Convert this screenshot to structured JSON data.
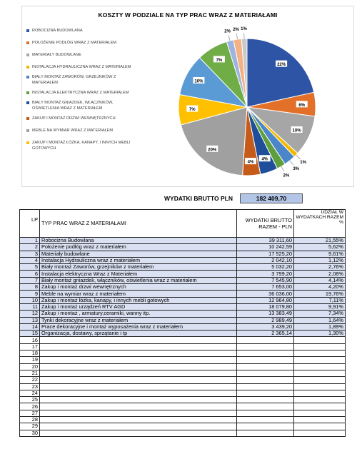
{
  "chart_data": {
    "type": "pie",
    "title": "KOSZTY W PODZIALE NA TYP PRAC WRAZ Z MATERIAŁAMI",
    "slices": [
      {
        "label": "Robocizna Budowlana",
        "value": 21.55,
        "display": "22%",
        "color": "#2e54a6"
      },
      {
        "label": "Położenie podłóg wraz z materiałem",
        "value": 5.62,
        "display": "6%",
        "color": "#e27028"
      },
      {
        "label": "Materiały budowlane",
        "value": 9.61,
        "display": "10%",
        "color": "#a6a6a6"
      },
      {
        "label": "Instalacja hydrauliczna wraz z materiałem",
        "value": 1.12,
        "display": "1%",
        "color": "#f2b800"
      },
      {
        "label": "Biały montaż zaworów, grzejników z materiałem",
        "value": 2.76,
        "display": "3%",
        "color": "#4a86c8"
      },
      {
        "label": "Instalacja elektryczna wraz z materiałem",
        "value": 2.08,
        "display": "2%",
        "color": "#5e9e3c"
      },
      {
        "label": "Biały montaż gniazdek, włączników, oświetlenia wraz z materiałem",
        "value": 4.14,
        "display": "4%",
        "color": "#1f4e9a"
      },
      {
        "label": "Zakup i montaż drzwi wewnętrznych",
        "value": 4.2,
        "display": "4%",
        "color": "#c65a18"
      },
      {
        "label": "Meble na wymiar wraz z materiałem",
        "value": 19.76,
        "display": "20%",
        "color": "#a0a0a0"
      },
      {
        "label": "Zakup i montaż łóżka, kanapy, i innych mebli gotowych",
        "value": 7.11,
        "display": "7%",
        "color": "#ffc000"
      },
      {
        "label": "Zakup i montaż urządzeń RTV AGD",
        "value": 9.91,
        "display": "10%",
        "color": "#5b9bd5"
      },
      {
        "label": "Zakup i montaż, armatury,ceramiki, wanny itp.",
        "value": 7.34,
        "display": "7%",
        "color": "#70ad47"
      },
      {
        "label": "Tynki dekoracyjne wraz z materiałem",
        "value": 1.64,
        "display": "2%",
        "color": "#9db4de"
      },
      {
        "label": "Prace dekoracyjne i montaż wyposażenia wraz z materiałem",
        "value": 1.89,
        "display": "2%",
        "color": "#f4b183"
      },
      {
        "label": "Organizacja, dostawy, sprzątanie i tp",
        "value": 1.3,
        "display": "1%",
        "color": "#c9c9c9"
      }
    ],
    "legend": [
      {
        "text": "ROBOCIZNA BUDOWLANA",
        "color": "#2e54a6"
      },
      {
        "text": "POŁOŻENIE PODŁÓG WRAZ Z MATERIAŁEM",
        "color": "#e27028"
      },
      {
        "text": "MATERIAŁY BUDOWLANE",
        "color": "#a6a6a6"
      },
      {
        "text": "INSTALACJA HYDRAULICZNA WRAZ Z MATERIAŁEM",
        "color": "#f2b800"
      },
      {
        "text": "BIAŁY MONTAŻ ZAWORÓW, GRZEJNIKÓW Z MATERIAŁEM",
        "color": "#4a86c8"
      },
      {
        "text": "INSTALACJA ELEKTRYCZNA WRAZ Z MATERIAŁEM",
        "color": "#5e9e3c"
      },
      {
        "text": "BIAŁY MONTAŻ GNIAZDEK, WŁĄCZNIKÓW, OŚWIETLENIA WRAZ Z MATERIAŁEM",
        "color": "#1f4e9a"
      },
      {
        "text": "ZAKUP I MONTAŻ DRZWI WEWNĘTRZNYCH",
        "color": "#c65a18"
      },
      {
        "text": "MEBLE NA WYMIAR WRAZ Z MATERIAŁEM",
        "color": "#a0a0a0"
      },
      {
        "text": "ZAKUP I MONTAŻ ŁÓŻKA, KANAPY, I INNYCH MEBLI GOTOWYCH",
        "color": "#ffc000"
      }
    ]
  },
  "summary": {
    "label": "WYDATKI BRUTTO PLN",
    "value": "182 409,70"
  },
  "table": {
    "headers": {
      "lp": "LP",
      "type": "TYP PRAC WRAZ Z MATERIAŁAMI",
      "cost": "WYDATKI BRUTTO RAZEM - PLN",
      "share": "UDZIAŁ W WYDATKACH RAZEM %"
    },
    "rows": [
      {
        "lp": "1",
        "type": "Robocizna Budowlana",
        "cost": "39 311,60",
        "share": "21,55%"
      },
      {
        "lp": "2",
        "type": "Położenie podłóg wraz z materiałem",
        "cost": "10 242,59",
        "share": "5,62%"
      },
      {
        "lp": "3",
        "type": "Materiały budowlane",
        "cost": "17 525,20",
        "share": "9,61%"
      },
      {
        "lp": "4",
        "type": "Instalacja Hydrauliczna wraz z materiałem",
        "cost": "2 042,10",
        "share": "1,12%"
      },
      {
        "lp": "5",
        "type": "Biały montaż Zaworów, grzejników z materiałem",
        "cost": "5 032,20",
        "share": "2,76%"
      },
      {
        "lp": "6",
        "type": "Instalacja elektryczna Wraz z Materiałem",
        "cost": "3 799,20",
        "share": "2,08%"
      },
      {
        "lp": "7",
        "type": "Biały montaż gniazdek, włączników, oświetlenia wraz z materiałem",
        "cost": "7 545,90",
        "share": "4,14%"
      },
      {
        "lp": "8",
        "type": "Zakup i montaż drzwi wewnętrznych",
        "cost": "7 653,00",
        "share": "4,20%"
      },
      {
        "lp": "9",
        "type": "Meble na wymiar wraz z materiałem",
        "cost": "36 036,00",
        "share": "19,76%"
      },
      {
        "lp": "10",
        "type": "Zakup i montaż łóżka, kanapy, i innych mebli gotowych",
        "cost": "12 964,80",
        "share": "7,11%"
      },
      {
        "lp": "11",
        "type": "Zakup i montaż urządzeń RTV AGD",
        "cost": "18 079,80",
        "share": "9,91%"
      },
      {
        "lp": "12",
        "type": "Zakup i montaż , armatury,ceramiki, wanny itp.",
        "cost": "13 383,49",
        "share": "7,34%"
      },
      {
        "lp": "13",
        "type": "Tynki dekoracyjne wraz z materiałem",
        "cost": "2 989,49",
        "share": "1,64%"
      },
      {
        "lp": "14",
        "type": "Prace dekoracyjne i montaż wyposażenia wraz z materiałem",
        "cost": "3 439,20",
        "share": "1,89%"
      },
      {
        "lp": "15",
        "type": "Organizacja, dostawy, sprzątanie i tp",
        "cost": "2 365,14",
        "share": "1,30%"
      },
      {
        "lp": "16",
        "type": "",
        "cost": "",
        "share": ""
      },
      {
        "lp": "17",
        "type": "",
        "cost": "",
        "share": ""
      },
      {
        "lp": "18",
        "type": "",
        "cost": "",
        "share": ""
      },
      {
        "lp": "19",
        "type": "",
        "cost": "",
        "share": ""
      },
      {
        "lp": "20",
        "type": "",
        "cost": "",
        "share": ""
      },
      {
        "lp": "21",
        "type": "",
        "cost": "",
        "share": ""
      },
      {
        "lp": "22",
        "type": "",
        "cost": "",
        "share": ""
      },
      {
        "lp": "23",
        "type": "",
        "cost": "",
        "share": ""
      },
      {
        "lp": "24",
        "type": "",
        "cost": "",
        "share": ""
      },
      {
        "lp": "25",
        "type": "",
        "cost": "",
        "share": ""
      },
      {
        "lp": "26",
        "type": "",
        "cost": "",
        "share": ""
      },
      {
        "lp": "27",
        "type": "",
        "cost": "",
        "share": ""
      },
      {
        "lp": "28",
        "type": "",
        "cost": "",
        "share": ""
      },
      {
        "lp": "29",
        "type": "",
        "cost": "",
        "share": ""
      },
      {
        "lp": "30",
        "type": "",
        "cost": "",
        "share": ""
      }
    ]
  }
}
